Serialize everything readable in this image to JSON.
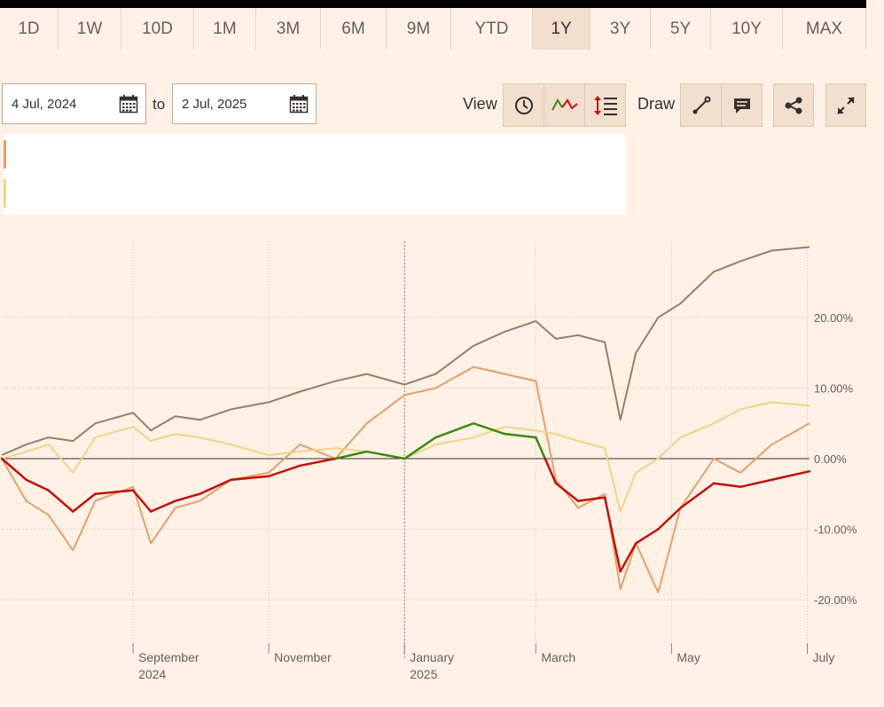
{
  "toolbar": {
    "ranges": [
      "1D",
      "1W",
      "10D",
      "1M",
      "3M",
      "6M",
      "9M",
      "YTD",
      "1Y",
      "3Y",
      "5Y",
      "10Y",
      "MAX"
    ],
    "active_range": "1Y",
    "from_date": "4 Jul, 2024",
    "to_label": "to",
    "to_date": "2 Jul, 2025",
    "view_label": "View",
    "draw_label": "Draw"
  },
  "icons": {
    "calendar": "calendar-icon",
    "clock": "clock-icon",
    "line_chart": "line-chart-icon",
    "comparison": "comparison-icon",
    "draw_line": "draw-line-icon",
    "annotation": "comment-icon",
    "share": "share-icon",
    "expand": "expand-icon"
  },
  "colors": {
    "background": "#fff1e5",
    "series_taupe": "#918070",
    "series_orange": "#e5a06b",
    "series_yellow": "#f0d485",
    "main_positive": "#3c8a0f",
    "main_negative": "#c0120e",
    "zero_line": "#33302e",
    "grid": "#cec6b9"
  },
  "chart_data": {
    "type": "line",
    "x": [
      "2024-07-04",
      "2024-07-15",
      "2024-07-25",
      "2024-08-05",
      "2024-08-15",
      "2024-09-01",
      "2024-09-09",
      "2024-09-20",
      "2024-10-01",
      "2024-10-15",
      "2024-11-01",
      "2024-11-15",
      "2024-12-01",
      "2024-12-15",
      "2025-01-01",
      "2025-01-15",
      "2025-02-01",
      "2025-02-15",
      "2025-03-01",
      "2025-03-10",
      "2025-03-20",
      "2025-04-01",
      "2025-04-08",
      "2025-04-15",
      "2025-04-25",
      "2025-05-05",
      "2025-05-20",
      "2025-06-01",
      "2025-06-15",
      "2025-07-02"
    ],
    "series": [
      {
        "values": [
          0.5,
          2.0,
          3.0,
          2.5,
          5.0,
          6.5,
          4.0,
          6.0,
          5.5,
          7.0,
          8.0,
          9.5,
          11.0,
          12.0,
          10.5,
          12.0,
          16.0,
          18.0,
          19.5,
          17.0,
          17.5,
          16.5,
          5.5,
          15.0,
          20.0,
          22.0,
          26.5,
          28.0,
          29.5,
          30.0
        ]
      },
      {
        "values": [
          0.0,
          -6.0,
          -8.0,
          -13.0,
          -6.0,
          -4.0,
          -12.0,
          -7.0,
          -6.0,
          -3.0,
          -2.0,
          2.0,
          0.0,
          5.0,
          9.0,
          10.0,
          13.0,
          12.0,
          11.0,
          -3.0,
          -7.0,
          -5.0,
          -18.5,
          -12.0,
          -19.0,
          -7.0,
          0.0,
          -2.0,
          2.0,
          5.0
        ]
      },
      {
        "values": [
          0.0,
          1.0,
          2.0,
          -2.0,
          3.0,
          4.5,
          2.5,
          3.5,
          3.0,
          2.0,
          0.5,
          1.0,
          1.5,
          1.0,
          0.0,
          2.0,
          3.0,
          4.5,
          4.0,
          3.5,
          2.5,
          1.5,
          -7.5,
          -2.0,
          0.0,
          3.0,
          5.0,
          7.0,
          8.0,
          7.5
        ]
      },
      {
        "values": [
          0.0,
          -3.0,
          -4.5,
          -7.5,
          -5.0,
          -4.5,
          -7.5,
          -6.0,
          -5.0,
          -3.0,
          -2.5,
          -1.0,
          0.0,
          1.0,
          0.0,
          3.0,
          5.0,
          3.5,
          3.0,
          -3.5,
          -6.0,
          -5.5,
          -16.0,
          -12.0,
          -10.0,
          -7.0,
          -3.5,
          -4.0,
          -3.0,
          -1.8
        ]
      }
    ],
    "xlabels": [
      {
        "date": "2024-09-01",
        "line1": "September",
        "line2": "2024"
      },
      {
        "date": "2024-11-01",
        "line1": "November",
        "line2": ""
      },
      {
        "date": "2025-01-01",
        "line1": "January",
        "line2": "2025"
      },
      {
        "date": "2025-03-01",
        "line1": "March",
        "line2": ""
      },
      {
        "date": "2025-05-01",
        "line1": "May",
        "line2": ""
      },
      {
        "date": "2025-07-01",
        "line1": "July",
        "line2": ""
      }
    ],
    "yticks": [
      20,
      10,
      0,
      -10,
      -20
    ],
    "ytick_labels": [
      "20.00%",
      "10.00%",
      "0.00%",
      "-10.00%",
      "-20.00%"
    ],
    "ylim": [
      -28,
      31
    ],
    "xlim": [
      "2024-07-04",
      "2025-07-02"
    ],
    "grid": true,
    "ylabel": "",
    "xlabel": ""
  }
}
